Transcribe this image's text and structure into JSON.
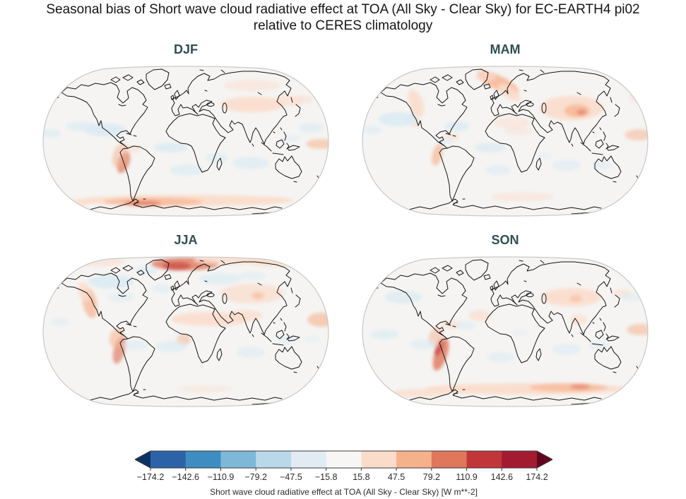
{
  "figure": {
    "title_line1": "Seasonal bias of Short wave cloud radiative effect at TOA (All Sky - Clear Sky) for EC-EARTH4 pi02",
    "title_line2": "relative to CERES climatology"
  },
  "colors": {
    "page_bg": "#ffffff",
    "map_bg": "#f5f4f2",
    "map_outline": "#c8c8c8",
    "coastline": "#141414",
    "panel_title": "#2f4f52",
    "tick_text": "#2b2b2b"
  },
  "palette": {
    "r1": "#fbdccb",
    "r2": "#f6b28e",
    "r3": "#e0765a",
    "r4": "#c13639",
    "b1": "#dcebf3",
    "b2": "#bad9e9"
  },
  "panels": [
    {
      "id": "djf",
      "label": "DJF",
      "blobs": [
        [
          205,
          193,
          155,
          8,
          0,
          "r1",
          0.95
        ],
        [
          160,
          195,
          70,
          6,
          0,
          "r2",
          0.7
        ],
        [
          145,
          197,
          26,
          4,
          0,
          "r3",
          0.7
        ],
        [
          40,
          197,
          30,
          5,
          0,
          "r1",
          0.8
        ],
        [
          118,
          139,
          8,
          16,
          20,
          "r3",
          0.7
        ],
        [
          113,
          129,
          10,
          18,
          20,
          "r2",
          0.5
        ],
        [
          300,
          57,
          45,
          11,
          0,
          "r1",
          0.85
        ],
        [
          350,
          52,
          22,
          8,
          0,
          "r1",
          0.6
        ],
        [
          398,
          113,
          22,
          7,
          0,
          "r2",
          0.55
        ],
        [
          132,
          120,
          10,
          5,
          0,
          "r1",
          0.6
        ],
        [
          300,
          30,
          40,
          8,
          0,
          "r1",
          0.5
        ],
        [
          372,
          50,
          15,
          6,
          0,
          "r1",
          0.5
        ],
        [
          92,
          93,
          30,
          9,
          0,
          "b1",
          0.95
        ],
        [
          58,
          88,
          22,
          7,
          0,
          "b1",
          0.7
        ],
        [
          15,
          98,
          14,
          6,
          0,
          "b1",
          0.7
        ],
        [
          185,
          118,
          24,
          7,
          0,
          "b1",
          0.85
        ],
        [
          208,
          150,
          24,
          8,
          0,
          "b1",
          0.7
        ],
        [
          250,
          133,
          16,
          7,
          0,
          "b1",
          0.6
        ],
        [
          298,
          140,
          26,
          9,
          0,
          "b1",
          0.7
        ],
        [
          383,
          90,
          18,
          7,
          0,
          "b1",
          0.65
        ],
        [
          355,
          105,
          14,
          5,
          0,
          "b1",
          0.5
        ]
      ]
    },
    {
      "id": "mam",
      "label": "MAM",
      "blobs": [
        [
          196,
          26,
          32,
          10,
          25,
          "r2",
          0.8
        ],
        [
          212,
          40,
          18,
          8,
          35,
          "r1",
          0.9
        ],
        [
          178,
          18,
          15,
          6,
          0,
          "r1",
          0.7
        ],
        [
          300,
          62,
          45,
          17,
          0,
          "r1",
          0.9
        ],
        [
          308,
          66,
          18,
          9,
          0,
          "r2",
          0.75
        ],
        [
          314,
          68,
          7,
          4,
          0,
          "r3",
          0.6
        ],
        [
          80,
          55,
          10,
          20,
          -20,
          "r1",
          0.85
        ],
        [
          78,
          78,
          8,
          12,
          -15,
          "r1",
          0.6
        ],
        [
          110,
          128,
          7,
          16,
          15,
          "r2",
          0.65
        ],
        [
          215,
          83,
          26,
          8,
          0,
          "r1",
          0.5
        ],
        [
          225,
          95,
          20,
          6,
          0,
          "r1",
          0.4
        ],
        [
          395,
          100,
          20,
          8,
          0,
          "r2",
          0.5
        ],
        [
          398,
          47,
          16,
          8,
          0,
          "r1",
          0.6
        ],
        [
          230,
          188,
          45,
          6,
          0,
          "r1",
          0.5
        ],
        [
          130,
          103,
          12,
          5,
          0,
          "r1",
          0.5
        ],
        [
          55,
          78,
          28,
          10,
          0,
          "b1",
          0.9
        ],
        [
          18,
          93,
          14,
          6,
          0,
          "b1",
          0.6
        ],
        [
          138,
          88,
          18,
          7,
          0,
          "b1",
          0.8
        ],
        [
          120,
          110,
          12,
          5,
          0,
          "b1",
          0.5
        ],
        [
          185,
          118,
          22,
          7,
          0,
          "b1",
          0.8
        ],
        [
          196,
          150,
          18,
          7,
          0,
          "b1",
          0.6
        ],
        [
          293,
          143,
          20,
          8,
          0,
          "b1",
          0.6
        ],
        [
          343,
          143,
          14,
          6,
          0,
          "b1",
          0.5
        ],
        [
          262,
          130,
          12,
          5,
          0,
          "b1",
          0.4
        ]
      ]
    },
    {
      "id": "jja",
      "label": "JJA",
      "blobs": [
        [
          205,
          13,
          48,
          9,
          0,
          "r3",
          0.8
        ],
        [
          193,
          16,
          20,
          6,
          0,
          "r4",
          0.55
        ],
        [
          272,
          8,
          55,
          6,
          0,
          "r1",
          0.8
        ],
        [
          335,
          11,
          38,
          6,
          0,
          "r1",
          0.7
        ],
        [
          80,
          10,
          40,
          6,
          0,
          "r1",
          0.6
        ],
        [
          70,
          68,
          10,
          22,
          -12,
          "r2",
          0.7
        ],
        [
          62,
          52,
          8,
          14,
          -15,
          "r1",
          0.8
        ],
        [
          112,
          135,
          8,
          20,
          15,
          "r3",
          0.65
        ],
        [
          108,
          118,
          10,
          14,
          15,
          "r2",
          0.55
        ],
        [
          240,
          91,
          55,
          10,
          0,
          "r1",
          0.85
        ],
        [
          290,
          86,
          25,
          8,
          0,
          "r1",
          0.7
        ],
        [
          300,
          55,
          45,
          14,
          0,
          "r1",
          0.7
        ],
        [
          308,
          58,
          9,
          5,
          0,
          "r2",
          0.55
        ],
        [
          398,
          92,
          20,
          10,
          0,
          "r2",
          0.6
        ],
        [
          203,
          120,
          10,
          8,
          0,
          "r2",
          0.5
        ],
        [
          232,
          190,
          40,
          5,
          0,
          "r1",
          0.4
        ],
        [
          100,
          38,
          32,
          10,
          0,
          "b1",
          0.9
        ],
        [
          150,
          22,
          15,
          6,
          0,
          "b1",
          0.7
        ],
        [
          255,
          34,
          30,
          8,
          0,
          "b1",
          0.7
        ],
        [
          300,
          30,
          20,
          6,
          0,
          "b1",
          0.5
        ],
        [
          172,
          48,
          15,
          6,
          0,
          "b1",
          0.6
        ],
        [
          115,
          60,
          20,
          7,
          0,
          "b1",
          0.5
        ],
        [
          185,
          130,
          22,
          8,
          0,
          "b1",
          0.7
        ],
        [
          135,
          128,
          18,
          7,
          0,
          "b1",
          0.6
        ],
        [
          298,
          138,
          20,
          8,
          0,
          "b1",
          0.6
        ],
        [
          350,
          120,
          15,
          6,
          0,
          "b1",
          0.5
        ],
        [
          28,
          95,
          14,
          6,
          0,
          "b1",
          0.5
        ],
        [
          385,
          120,
          12,
          5,
          0,
          "b1",
          0.4
        ]
      ]
    },
    {
      "id": "son",
      "label": "SON",
      "blobs": [
        [
          115,
          141,
          9,
          24,
          18,
          "r3",
          0.8
        ],
        [
          112,
          132,
          5,
          12,
          18,
          "r4",
          0.6
        ],
        [
          108,
          117,
          10,
          14,
          15,
          "r2",
          0.5
        ],
        [
          235,
          190,
          145,
          8,
          0,
          "r1",
          0.95
        ],
        [
          295,
          188,
          55,
          6,
          0,
          "r2",
          0.65
        ],
        [
          312,
          187,
          14,
          4,
          0,
          "r3",
          0.55
        ],
        [
          85,
          196,
          40,
          6,
          0,
          "r1",
          0.75
        ],
        [
          300,
          60,
          42,
          13,
          0,
          "r1",
          0.85
        ],
        [
          306,
          62,
          9,
          5,
          0,
          "r2",
          0.5
        ],
        [
          170,
          86,
          16,
          8,
          0,
          "r1",
          0.65
        ],
        [
          130,
          99,
          16,
          6,
          0,
          "r1",
          0.6
        ],
        [
          310,
          92,
          12,
          8,
          0,
          "r1",
          0.6
        ],
        [
          398,
          106,
          20,
          8,
          0,
          "r2",
          0.55
        ],
        [
          372,
          55,
          14,
          6,
          0,
          "r1",
          0.5
        ],
        [
          62,
          60,
          26,
          9,
          0,
          "b1",
          0.8
        ],
        [
          35,
          113,
          20,
          7,
          0,
          "b1",
          0.7
        ],
        [
          90,
          127,
          20,
          7,
          0,
          "b1",
          0.6
        ],
        [
          150,
          100,
          15,
          6,
          0,
          "b1",
          0.6
        ],
        [
          200,
          145,
          20,
          7,
          0,
          "b1",
          0.6
        ],
        [
          293,
          134,
          20,
          8,
          0,
          "b1",
          0.6
        ],
        [
          338,
          128,
          15,
          6,
          0,
          "b1",
          0.5
        ],
        [
          385,
          60,
          15,
          6,
          0,
          "b1",
          0.5
        ],
        [
          228,
          110,
          12,
          5,
          0,
          "b1",
          0.4
        ]
      ]
    }
  ],
  "colorbar": {
    "label": "Short wave cloud radiative effect at TOA (All Sky - Clear Sky) [W m**-2]",
    "tick_labels": [
      "−174.2",
      "−142.6",
      "−110.9",
      "−79.2",
      "−47.5",
      "−15.8",
      "15.8",
      "47.5",
      "79.2",
      "110.9",
      "142.6",
      "174.2"
    ],
    "segments": [
      "#2c63a8",
      "#3f8cc1",
      "#7db8d9",
      "#b9d9e9",
      "#e0ebf3",
      "#f7f6f5",
      "#fbdccb",
      "#f5b08c",
      "#e0765a",
      "#c13639",
      "#a31b31"
    ],
    "under_color": "#0b3263",
    "over_color": "#62061e",
    "outline_color": "#3a3a3a"
  },
  "chart_data": {
    "type": "heatmap",
    "title": "Seasonal bias of Short wave cloud radiative effect at TOA (All Sky - Clear Sky) for EC-EARTH4 pi02 relative to CERES climatology",
    "variable": "Short wave cloud radiative effect at TOA (All Sky - Clear Sky)",
    "units": "W m**-2",
    "panels": [
      "DJF",
      "MAM",
      "JJA",
      "SON"
    ],
    "projection": "Robinson",
    "colormap": "diverging blue-white-red (RdBu_r), extended both ends",
    "colorbar_ticks": [
      -174.2,
      -142.6,
      -110.9,
      -79.2,
      -47.5,
      -15.8,
      15.8,
      47.5,
      79.2,
      110.9,
      142.6,
      174.2
    ],
    "legend_position": "bottom",
    "notable_bias_regions": {
      "DJF": [
        "positive bias band along Southern Ocean (~60S), strongest south of South America",
        "positive bias off Peru/Chile coast",
        "weak positive bias over central Asia",
        "weak negative bias over subtropical eastern Pacific, tropical Atlantic and southern Indian Ocean"
      ],
      "MAM": [
        "positive bias over Greenland/Norwegian Sea",
        "positive bias over central Asia with strong core near Tibet",
        "positive bias along North American west coast and Peru coast",
        "weak negative bias over subtropical oceans"
      ],
      "JJA": [
        "strong positive bias over Barents/Norwegian Sea and Arctic rim",
        "positive bias along US west coast and Peru coast",
        "positive bias band over Sahara/Sahel and Arabia",
        "weak negative bias over Hudson Bay region, northern Russia and subtropical southern oceans"
      ],
      "SON": [
        "strong positive bias along Peru/Chile coast",
        "positive bias band along Southern Ocean, strongest south of Indian Ocean",
        "weak positive bias over central Asia",
        "weak negative bias over subtropical oceans"
      ]
    }
  }
}
